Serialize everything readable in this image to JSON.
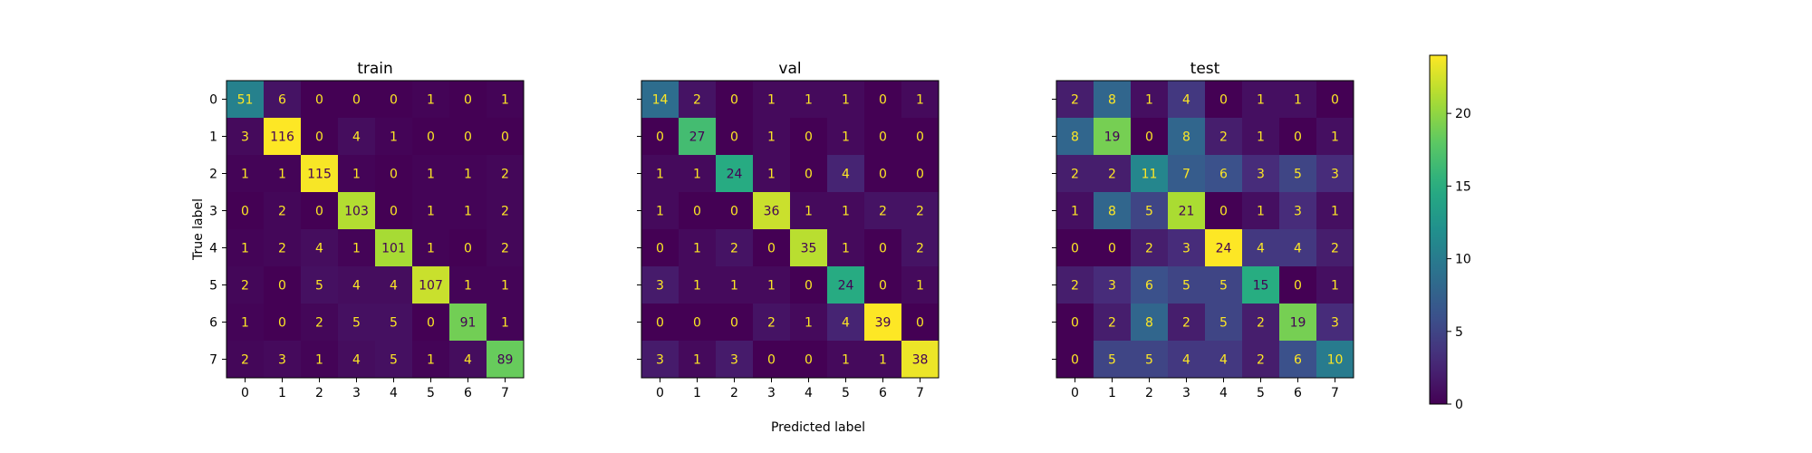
{
  "chart_data": {
    "type": "heatmap",
    "xlabel": "Predicted label",
    "ylabel": "True label",
    "categories": [
      "0",
      "1",
      "2",
      "3",
      "4",
      "5",
      "6",
      "7"
    ],
    "colormap": "viridis",
    "colorbar": {
      "range": [
        0,
        24
      ],
      "ticks": [
        "0",
        "5",
        "10",
        "15",
        "20"
      ]
    },
    "matrices": [
      {
        "title": "train",
        "values": [
          [
            51,
            6,
            0,
            0,
            0,
            1,
            0,
            1
          ],
          [
            3,
            116,
            0,
            4,
            1,
            0,
            0,
            0
          ],
          [
            1,
            1,
            115,
            1,
            0,
            1,
            1,
            2
          ],
          [
            0,
            2,
            0,
            103,
            0,
            1,
            1,
            2
          ],
          [
            1,
            2,
            4,
            1,
            101,
            1,
            0,
            2
          ],
          [
            2,
            0,
            5,
            4,
            4,
            107,
            1,
            1
          ],
          [
            1,
            0,
            2,
            5,
            5,
            0,
            91,
            1
          ],
          [
            2,
            3,
            1,
            4,
            5,
            1,
            4,
            89
          ]
        ]
      },
      {
        "title": "val",
        "values": [
          [
            14,
            2,
            0,
            1,
            1,
            1,
            0,
            1
          ],
          [
            0,
            27,
            0,
            1,
            0,
            1,
            0,
            0
          ],
          [
            1,
            1,
            24,
            1,
            0,
            4,
            0,
            0
          ],
          [
            1,
            0,
            0,
            36,
            1,
            1,
            2,
            2
          ],
          [
            0,
            1,
            2,
            0,
            35,
            1,
            0,
            2
          ],
          [
            3,
            1,
            1,
            1,
            0,
            24,
            0,
            1
          ],
          [
            0,
            0,
            0,
            2,
            1,
            4,
            39,
            0
          ],
          [
            3,
            1,
            3,
            0,
            0,
            1,
            1,
            38
          ]
        ]
      },
      {
        "title": "test",
        "values": [
          [
            2,
            8,
            1,
            4,
            0,
            1,
            1,
            0
          ],
          [
            8,
            19,
            0,
            8,
            2,
            1,
            0,
            1
          ],
          [
            2,
            2,
            11,
            7,
            6,
            3,
            5,
            3
          ],
          [
            1,
            8,
            5,
            21,
            0,
            1,
            3,
            1
          ],
          [
            0,
            0,
            2,
            3,
            24,
            4,
            4,
            2
          ],
          [
            2,
            3,
            6,
            5,
            5,
            15,
            0,
            1
          ],
          [
            0,
            2,
            8,
            2,
            5,
            2,
            19,
            3
          ],
          [
            0,
            5,
            5,
            4,
            4,
            2,
            6,
            10
          ]
        ]
      }
    ]
  }
}
